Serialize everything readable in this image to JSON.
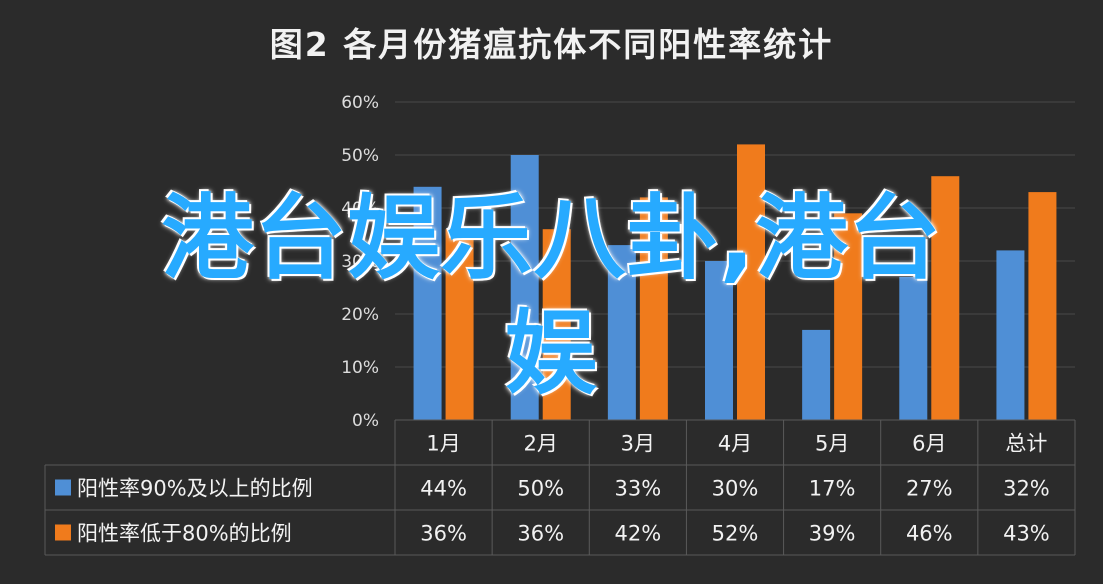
{
  "chart_data": {
    "type": "bar",
    "title": "图2 各月份猪瘟抗体不同阳性率统计",
    "categories": [
      "1月",
      "2月",
      "3月",
      "4月",
      "5月",
      "6月",
      "总计"
    ],
    "series": [
      {
        "name": "阳性率90%及以上的比例",
        "values": [
          44,
          50,
          33,
          30,
          17,
          27,
          32
        ],
        "labels": [
          "44%",
          "50%",
          "33%",
          "30%",
          "17%",
          "27%",
          "32%"
        ],
        "color": "#4f8fd6"
      },
      {
        "name": "阳性率低于80%的比例",
        "values": [
          36,
          36,
          42,
          52,
          39,
          46,
          43
        ],
        "labels": [
          "36%",
          "36%",
          "42%",
          "52%",
          "39%",
          "46%",
          "43%"
        ],
        "color": "#f07b1c"
      }
    ],
    "yticks": [
      "0%",
      "10%",
      "20%",
      "30%",
      "40%",
      "50%",
      "60%"
    ],
    "ylim": [
      0,
      60
    ],
    "grid": true,
    "legend": "data-table"
  },
  "overlay": {
    "line1": "港台娱乐八卦,港台",
    "line2": "娱"
  },
  "colors": {
    "background": "#2b2b2b",
    "grid": "#4a4a4a",
    "text": "#f2f2f2",
    "overlay": "#27aaff"
  }
}
